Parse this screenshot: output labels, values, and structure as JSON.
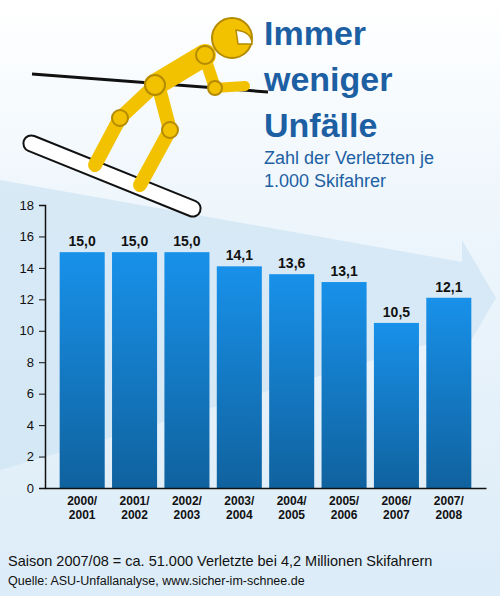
{
  "chart_data": {
    "type": "bar",
    "title": "Immer weniger Unfälle",
    "subtitle": "Zahl der Verletzten je 1.000 Skifahrer",
    "categories": [
      "2000/2001",
      "2001/2002",
      "2002/2003",
      "2003/2004",
      "2004/2005",
      "2005/2006",
      "2006/2007",
      "2007/2008"
    ],
    "values": [
      15.0,
      15.0,
      15.0,
      14.1,
      13.6,
      13.1,
      10.5,
      12.1
    ],
    "value_labels": [
      "15,0",
      "15,0",
      "15,0",
      "14,1",
      "13,6",
      "13,1",
      "10,5",
      "12,1"
    ],
    "color": "#1479c4",
    "ylim": [
      0,
      18
    ],
    "yticks": [
      0,
      2,
      4,
      6,
      8,
      10,
      12,
      14,
      16,
      18
    ],
    "grid": false,
    "data_labels": true,
    "annotations": [
      "Saison 2007/08 = ca. 51.000 Verletzte bei 4,2 Millionen Skifahrern",
      "Quelle: ASU-Unfallanalyse, www.sicher-im-schnee.de"
    ]
  }
}
